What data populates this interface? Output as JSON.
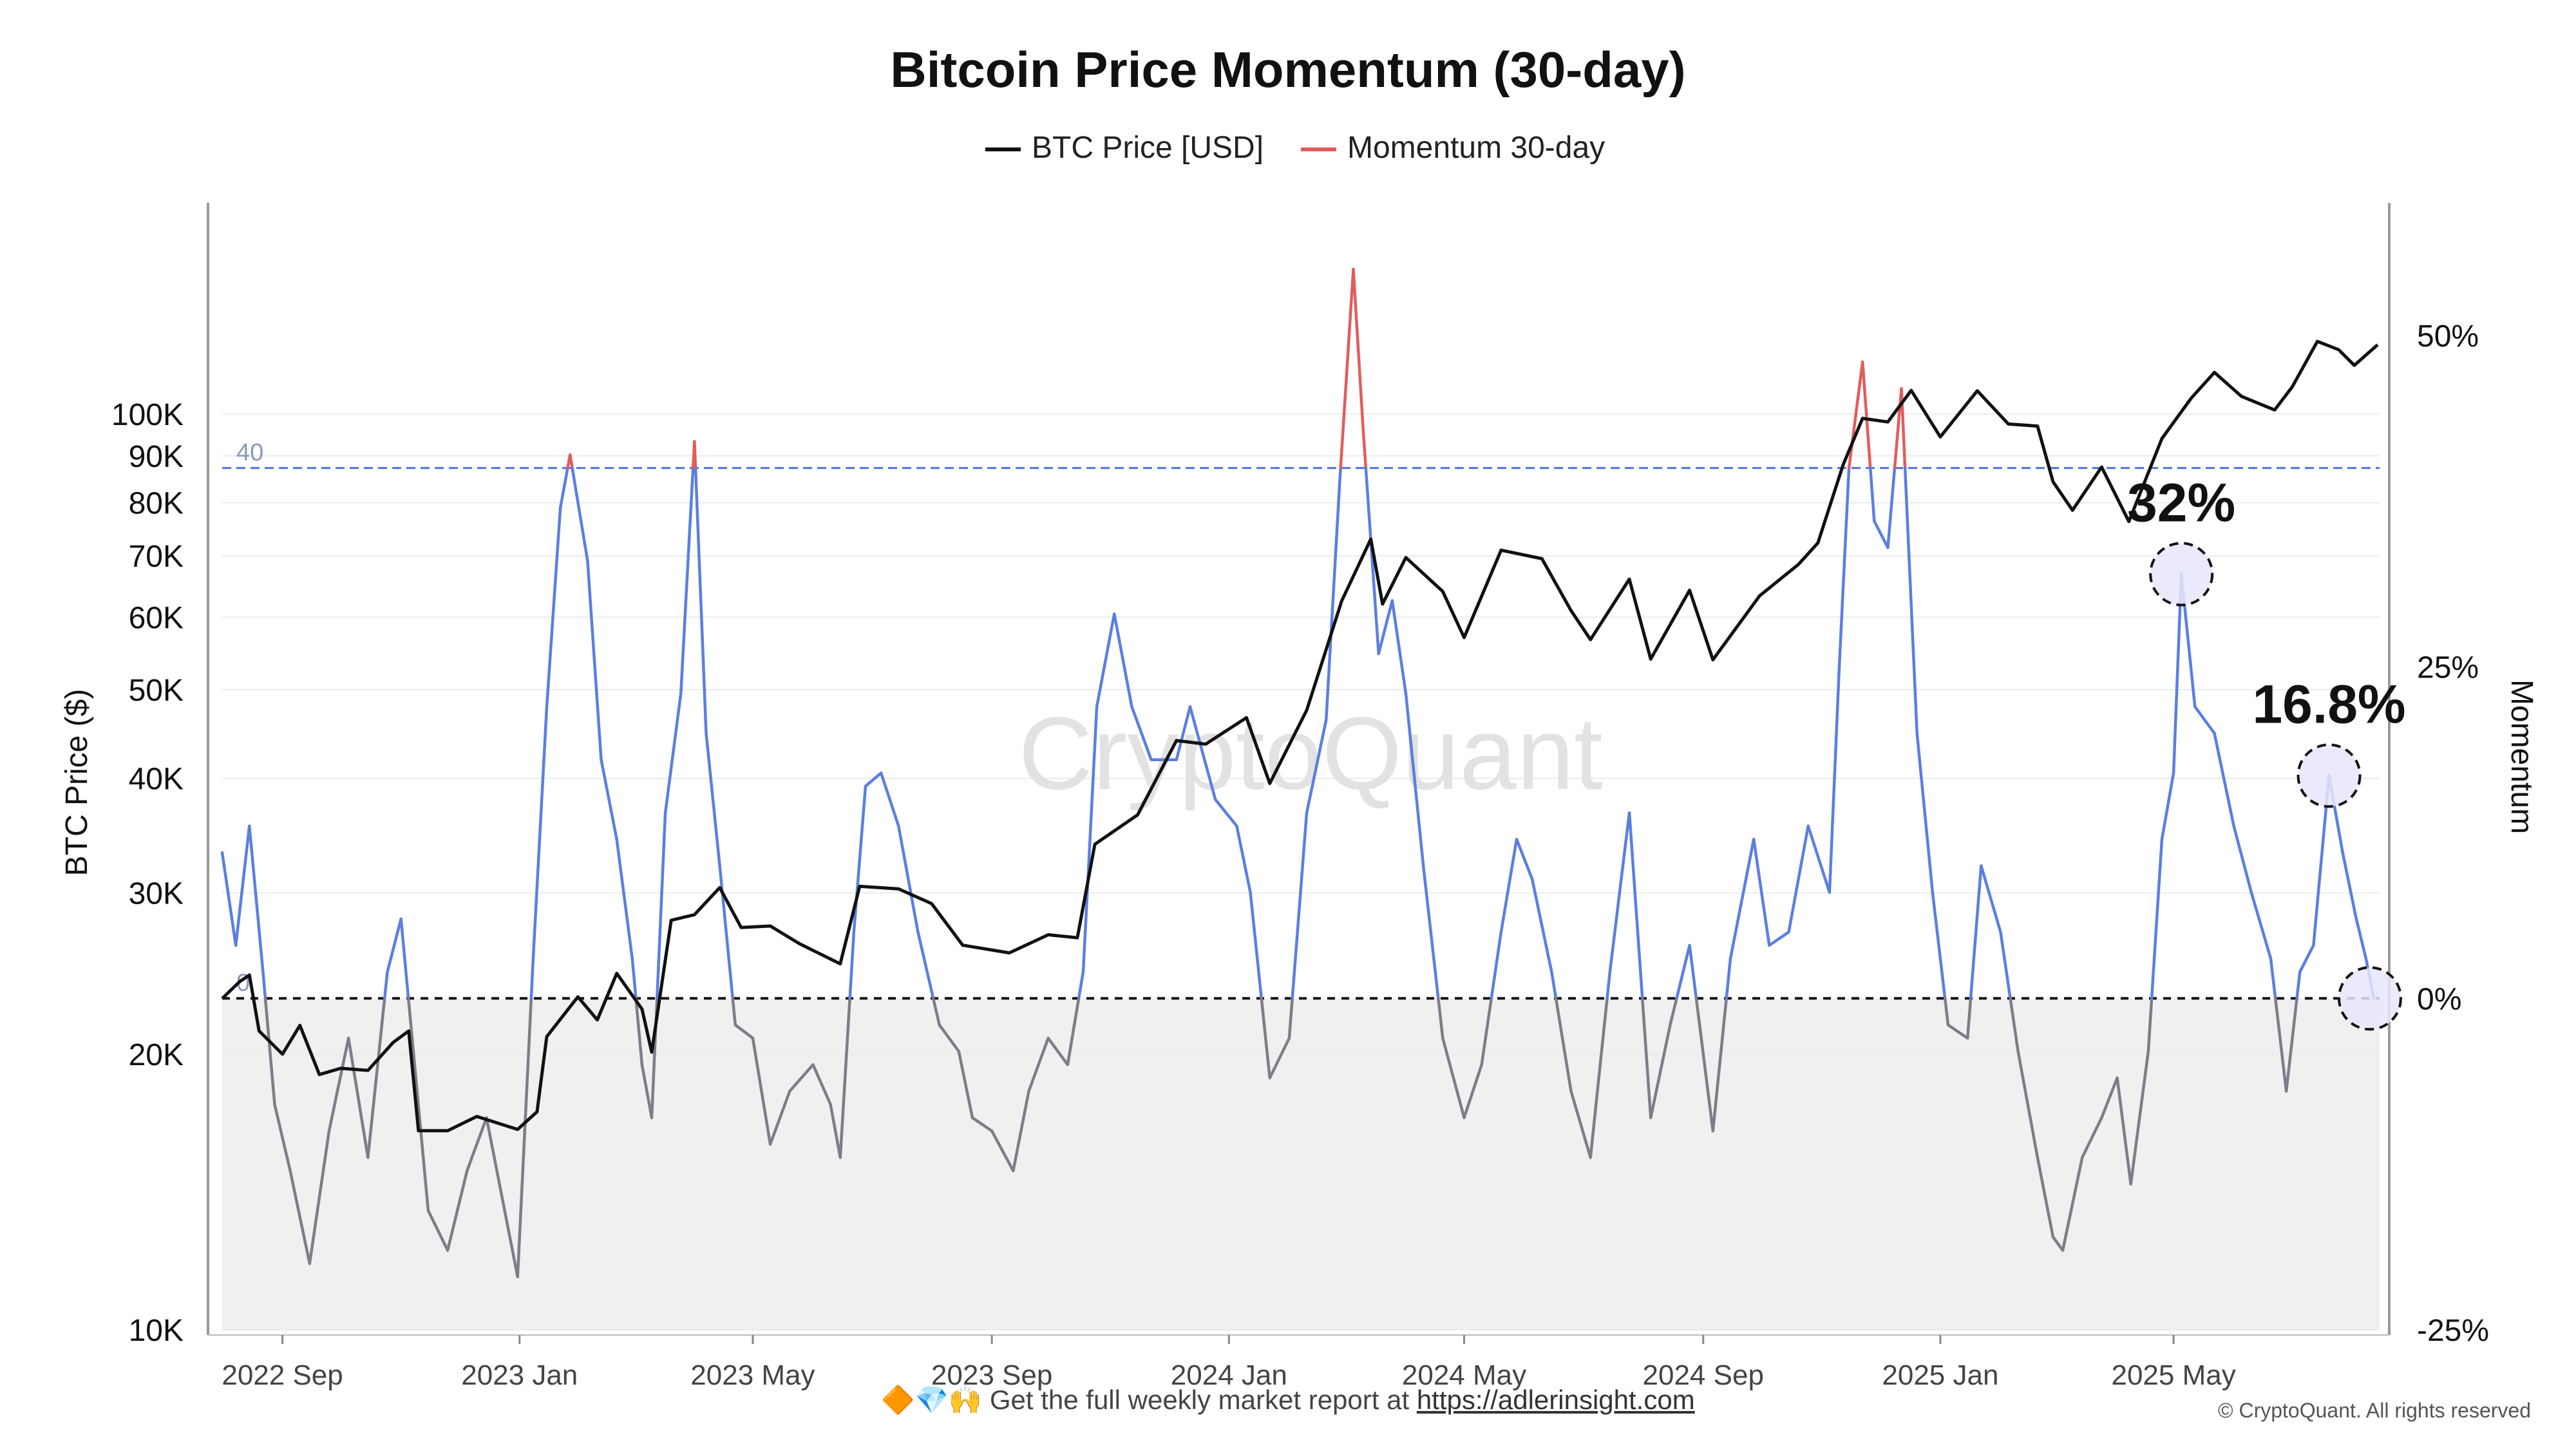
{
  "chart_data": {
    "type": "line",
    "title": "Bitcoin Price Momentum (30-day)",
    "legend": [
      "BTC Price [USD]",
      "Momentum 30-day"
    ],
    "legend_placement": "top-center",
    "watermark": "CryptoQuant",
    "colors": {
      "price": "#111111",
      "momentum": "#5b7fe0",
      "momentum_hot": "#e25c5c",
      "momentum_negative": "#7d7d8a",
      "negative_zone": "#f0f0f0",
      "threshold_line": "#4a6fe0",
      "highlight_fill": "#e8e6fb"
    },
    "y_left": {
      "label": "BTC Price ($)",
      "scale": "log",
      "range": [
        10000,
        170000
      ],
      "ticks": [
        10000,
        20000,
        30000,
        40000,
        50000,
        60000,
        70000,
        80000,
        90000,
        100000
      ],
      "tick_labels": [
        "10K",
        "20K",
        "30K",
        "40K",
        "50K",
        "60K",
        "70K",
        "80K",
        "90K",
        "100K"
      ]
    },
    "y_right": {
      "label": "Momentum",
      "range": [
        -25,
        60
      ],
      "ticks": [
        -25,
        0,
        25,
        50
      ],
      "tick_labels": [
        "-25%",
        "0%",
        "25%",
        "50%"
      ]
    },
    "x_axis": {
      "range": [
        "2022-08-01",
        "2025-08-15"
      ],
      "ticks": [
        "2022-09-01",
        "2023-01-01",
        "2023-05-01",
        "2023-09-01",
        "2024-01-01",
        "2024-05-01",
        "2024-09-01",
        "2025-01-01",
        "2025-05-01"
      ],
      "tick_labels": [
        "2022 Sep",
        "2023 Jan",
        "2023 May",
        "2023 Sep",
        "2024 Jan",
        "2024 May",
        "2024 Sep",
        "2025 Jan",
        "2025 May"
      ]
    },
    "reference_lines": [
      {
        "value": 40,
        "label": "40"
      },
      {
        "value": 0,
        "label": "0"
      }
    ],
    "annotations": [
      {
        "date": "2025-05-05",
        "value": 32,
        "label": "32%"
      },
      {
        "date": "2025-07-20",
        "value": 16.8,
        "label": "16.8%"
      },
      {
        "date": "2025-08-10",
        "value": 0,
        "label": ""
      }
    ],
    "price_series": {
      "name": "BTC Price [USD]",
      "points": [
        [
          "2022-08-01",
          23000
        ],
        [
          "2022-08-10",
          24000
        ],
        [
          "2022-08-15",
          24400
        ],
        [
          "2022-08-20",
          21200
        ],
        [
          "2022-09-01",
          20000
        ],
        [
          "2022-09-10",
          21500
        ],
        [
          "2022-09-20",
          19000
        ],
        [
          "2022-10-01",
          19300
        ],
        [
          "2022-10-15",
          19200
        ],
        [
          "2022-10-28",
          20600
        ],
        [
          "2022-11-05",
          21200
        ],
        [
          "2022-11-10",
          16500
        ],
        [
          "2022-11-25",
          16500
        ],
        [
          "2022-12-10",
          17100
        ],
        [
          "2022-12-31",
          16550
        ],
        [
          "2023-01-10",
          17300
        ],
        [
          "2023-01-15",
          20900
        ],
        [
          "2023-01-31",
          23100
        ],
        [
          "2023-02-10",
          21800
        ],
        [
          "2023-02-20",
          24500
        ],
        [
          "2023-03-05",
          22400
        ],
        [
          "2023-03-10",
          20100
        ],
        [
          "2023-03-20",
          28000
        ],
        [
          "2023-04-01",
          28400
        ],
        [
          "2023-04-14",
          30400
        ],
        [
          "2023-04-25",
          27500
        ],
        [
          "2023-05-10",
          27600
        ],
        [
          "2023-05-25",
          26400
        ],
        [
          "2023-06-15",
          25100
        ],
        [
          "2023-06-25",
          30500
        ],
        [
          "2023-07-15",
          30300
        ],
        [
          "2023-08-01",
          29200
        ],
        [
          "2023-08-17",
          26300
        ],
        [
          "2023-09-10",
          25800
        ],
        [
          "2023-09-30",
          27000
        ],
        [
          "2023-10-15",
          26800
        ],
        [
          "2023-10-24",
          33900
        ],
        [
          "2023-11-15",
          36500
        ],
        [
          "2023-12-05",
          44000
        ],
        [
          "2023-12-20",
          43600
        ],
        [
          "2024-01-10",
          46600
        ],
        [
          "2024-01-22",
          39500
        ],
        [
          "2024-02-10",
          47500
        ],
        [
          "2024-02-28",
          62500
        ],
        [
          "2024-03-14",
          73000
        ],
        [
          "2024-03-20",
          62000
        ],
        [
          "2024-04-01",
          69700
        ],
        [
          "2024-04-20",
          64000
        ],
        [
          "2024-05-01",
          57000
        ],
        [
          "2024-05-20",
          71000
        ],
        [
          "2024-06-10",
          69500
        ],
        [
          "2024-06-25",
          61000
        ],
        [
          "2024-07-05",
          56700
        ],
        [
          "2024-07-25",
          66000
        ],
        [
          "2024-08-05",
          54000
        ],
        [
          "2024-08-25",
          64200
        ],
        [
          "2024-09-06",
          53900
        ],
        [
          "2024-09-30",
          63300
        ],
        [
          "2024-10-20",
          68500
        ],
        [
          "2024-10-30",
          72300
        ],
        [
          "2024-11-12",
          88000
        ],
        [
          "2024-11-22",
          98900
        ],
        [
          "2024-12-05",
          98000
        ],
        [
          "2024-12-17",
          106100
        ],
        [
          "2025-01-01",
          94400
        ],
        [
          "2025-01-20",
          106000
        ],
        [
          "2025-02-05",
          97500
        ],
        [
          "2025-02-20",
          97000
        ],
        [
          "2025-02-28",
          84300
        ],
        [
          "2025-03-10",
          78500
        ],
        [
          "2025-03-25",
          87500
        ],
        [
          "2025-04-08",
          76300
        ],
        [
          "2025-04-25",
          94000
        ],
        [
          "2025-05-10",
          104000
        ],
        [
          "2025-05-22",
          111000
        ],
        [
          "2025-06-05",
          104500
        ],
        [
          "2025-06-22",
          101000
        ],
        [
          "2025-07-01",
          107000
        ],
        [
          "2025-07-14",
          120000
        ],
        [
          "2025-07-25",
          117500
        ],
        [
          "2025-08-02",
          113000
        ],
        [
          "2025-08-14",
          119000
        ]
      ]
    },
    "momentum_series": {
      "name": "Momentum 30-day",
      "points": [
        [
          "2022-08-01",
          11
        ],
        [
          "2022-08-08",
          4
        ],
        [
          "2022-08-15",
          13
        ],
        [
          "2022-08-22",
          2
        ],
        [
          "2022-08-28",
          -8
        ],
        [
          "2022-09-05",
          -13
        ],
        [
          "2022-09-15",
          -20
        ],
        [
          "2022-09-25",
          -10
        ],
        [
          "2022-10-05",
          -3
        ],
        [
          "2022-10-15",
          -12
        ],
        [
          "2022-10-25",
          2
        ],
        [
          "2022-11-01",
          6
        ],
        [
          "2022-11-08",
          -5
        ],
        [
          "2022-11-15",
          -16
        ],
        [
          "2022-11-25",
          -19
        ],
        [
          "2022-12-05",
          -13
        ],
        [
          "2022-12-15",
          -9
        ],
        [
          "2022-12-31",
          -21
        ],
        [
          "2023-01-08",
          3
        ],
        [
          "2023-01-15",
          22
        ],
        [
          "2023-01-22",
          37
        ],
        [
          "2023-01-27",
          41
        ],
        [
          "2023-02-05",
          33
        ],
        [
          "2023-02-12",
          18
        ],
        [
          "2023-02-20",
          12
        ],
        [
          "2023-02-28",
          3
        ],
        [
          "2023-03-05",
          -5
        ],
        [
          "2023-03-10",
          -9
        ],
        [
          "2023-03-17",
          14
        ],
        [
          "2023-03-25",
          23
        ],
        [
          "2023-04-01",
          42
        ],
        [
          "2023-04-07",
          20
        ],
        [
          "2023-04-14",
          10
        ],
        [
          "2023-04-22",
          -2
        ],
        [
          "2023-05-01",
          -3
        ],
        [
          "2023-05-10",
          -11
        ],
        [
          "2023-05-20",
          -7
        ],
        [
          "2023-06-01",
          -5
        ],
        [
          "2023-06-10",
          -8
        ],
        [
          "2023-06-15",
          -12
        ],
        [
          "2023-06-22",
          5
        ],
        [
          "2023-06-28",
          16
        ],
        [
          "2023-07-06",
          17
        ],
        [
          "2023-07-15",
          13
        ],
        [
          "2023-07-25",
          5
        ],
        [
          "2023-08-05",
          -2
        ],
        [
          "2023-08-15",
          -4
        ],
        [
          "2023-08-22",
          -9
        ],
        [
          "2023-09-01",
          -10
        ],
        [
          "2023-09-12",
          -13
        ],
        [
          "2023-09-20",
          -7
        ],
        [
          "2023-09-30",
          -3
        ],
        [
          "2023-10-10",
          -5
        ],
        [
          "2023-10-18",
          2
        ],
        [
          "2023-10-25",
          22
        ],
        [
          "2023-11-03",
          29
        ],
        [
          "2023-11-12",
          22
        ],
        [
          "2023-11-22",
          18
        ],
        [
          "2023-12-05",
          18
        ],
        [
          "2023-12-12",
          22
        ],
        [
          "2023-12-25",
          15
        ],
        [
          "2024-01-05",
          13
        ],
        [
          "2024-01-12",
          8
        ],
        [
          "2024-01-22",
          -6
        ],
        [
          "2024-02-01",
          -3
        ],
        [
          "2024-02-10",
          14
        ],
        [
          "2024-02-20",
          21
        ],
        [
          "2024-02-27",
          39
        ],
        [
          "2024-03-05",
          55
        ],
        [
          "2024-03-10",
          43
        ],
        [
          "2024-03-18",
          26
        ],
        [
          "2024-03-25",
          30
        ],
        [
          "2024-04-01",
          23
        ],
        [
          "2024-04-10",
          10
        ],
        [
          "2024-04-20",
          -3
        ],
        [
          "2024-05-01",
          -9
        ],
        [
          "2024-05-10",
          -5
        ],
        [
          "2024-05-20",
          5
        ],
        [
          "2024-05-28",
          12
        ],
        [
          "2024-06-05",
          9
        ],
        [
          "2024-06-15",
          2
        ],
        [
          "2024-06-25",
          -7
        ],
        [
          "2024-07-05",
          -12
        ],
        [
          "2024-07-15",
          2
        ],
        [
          "2024-07-25",
          14
        ],
        [
          "2024-08-05",
          -9
        ],
        [
          "2024-08-15",
          -2
        ],
        [
          "2024-08-25",
          4
        ],
        [
          "2024-09-06",
          -10
        ],
        [
          "2024-09-15",
          3
        ],
        [
          "2024-09-27",
          12
        ],
        [
          "2024-10-05",
          4
        ],
        [
          "2024-10-15",
          5
        ],
        [
          "2024-10-25",
          13
        ],
        [
          "2024-11-05",
          8
        ],
        [
          "2024-11-10",
          25
        ],
        [
          "2024-11-15",
          40
        ],
        [
          "2024-11-22",
          48
        ],
        [
          "2024-11-28",
          36
        ],
        [
          "2024-12-05",
          34
        ],
        [
          "2024-12-12",
          46
        ],
        [
          "2024-12-20",
          20
        ],
        [
          "2024-12-28",
          8
        ],
        [
          "2025-01-05",
          -2
        ],
        [
          "2025-01-15",
          -3
        ],
        [
          "2025-01-22",
          10
        ],
        [
          "2025-02-01",
          5
        ],
        [
          "2025-02-10",
          -4
        ],
        [
          "2025-02-20",
          -12
        ],
        [
          "2025-02-28",
          -18
        ],
        [
          "2025-03-05",
          -19
        ],
        [
          "2025-03-15",
          -12
        ],
        [
          "2025-03-25",
          -9
        ],
        [
          "2025-04-02",
          -6
        ],
        [
          "2025-04-09",
          -14
        ],
        [
          "2025-04-18",
          -4
        ],
        [
          "2025-04-25",
          12
        ],
        [
          "2025-05-01",
          17
        ],
        [
          "2025-05-05",
          32
        ],
        [
          "2025-05-12",
          22
        ],
        [
          "2025-05-22",
          20
        ],
        [
          "2025-06-01",
          13
        ],
        [
          "2025-06-10",
          8
        ],
        [
          "2025-06-20",
          3
        ],
        [
          "2025-06-28",
          -7
        ],
        [
          "2025-07-05",
          2
        ],
        [
          "2025-07-12",
          4
        ],
        [
          "2025-07-20",
          16.8
        ],
        [
          "2025-07-27",
          11
        ],
        [
          "2025-08-03",
          6
        ],
        [
          "2025-08-08",
          3
        ],
        [
          "2025-08-12",
          0
        ]
      ]
    }
  },
  "footer": {
    "emojis": "🔶💎🙌",
    "text": "Get the full weekly market report at",
    "link": "https://adlerinsight.com"
  },
  "copyright": "© CryptoQuant. All rights reserved"
}
